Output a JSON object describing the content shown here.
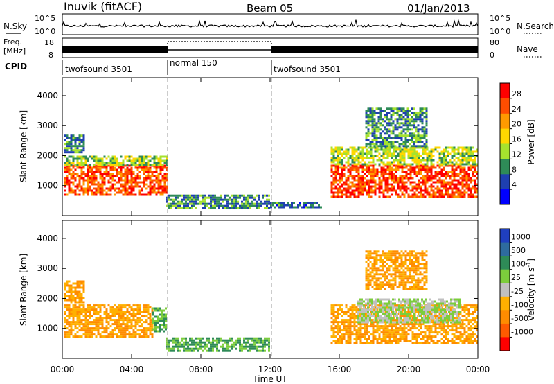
{
  "header": {
    "station": "Inuvik (fitACF)",
    "beam": "Beam 05",
    "date": "01/Jan/2013"
  },
  "strip_labels": {
    "nsky": "N.Sky",
    "nsky_ticks": [
      "10^5",
      "10^0"
    ],
    "nsearch": "N.Search",
    "nsearch_ticks": [
      "10^5",
      "10^0"
    ],
    "freq_line1": "Freq.",
    "freq_line2": "[MHz]",
    "freq_ticks": [
      "18",
      "8"
    ],
    "nave": "Nave",
    "nave_ticks": [
      "80",
      "0"
    ],
    "cpid": "CPID"
  },
  "cpid_segments": [
    {
      "label": "twofsound 3501",
      "start": 0,
      "end": 6
    },
    {
      "label": "normal 150",
      "start": 6,
      "end": 12
    },
    {
      "label": "twofsound 3501",
      "start": 12,
      "end": 24
    }
  ],
  "axes": {
    "xlabel": "Time UT",
    "xticks": [
      "00:00",
      "04:00",
      "08:00",
      "12:00",
      "16:00",
      "20:00",
      "00:00"
    ],
    "ylabel": "Slant Range [km]",
    "yticks": [
      "1000",
      "2000",
      "3000",
      "4000"
    ]
  },
  "colorbars": {
    "power": {
      "label": "Power [dB]",
      "ticks": [
        "28",
        "24",
        "20",
        "16",
        "12",
        "8",
        "4"
      ],
      "colors": [
        "#ff0000",
        "#ff4d00",
        "#ff9a00",
        "#ffd700",
        "#a6e22e",
        "#2e8b57",
        "#1e3fb0",
        "#0000ff"
      ]
    },
    "velocity": {
      "label": "Velocity [m s",
      "label_sup": "-1",
      "label_end": "]",
      "ticks": [
        "1000",
        "500",
        "100",
        "25",
        "-25",
        "-100",
        "-500",
        "-1000"
      ],
      "colors": [
        "#1f3fbf",
        "#2e6b9e",
        "#2e8b57",
        "#7ccd3c",
        "#c0c0c0",
        "#ffb000",
        "#ff8c00",
        "#ff5a00",
        "#ff0000"
      ]
    }
  },
  "chart_data": [
    {
      "type": "heatmap",
      "panel": "power",
      "x_range_hours": [
        0,
        24
      ],
      "ylim": [
        0,
        4600
      ],
      "units": "dB",
      "regions": [
        {
          "t0": 0.1,
          "t1": 6.0,
          "r0": 700,
          "r1": 1700,
          "value": 26
        },
        {
          "t0": 0.1,
          "t1": 6.0,
          "r0": 1700,
          "r1": 2000,
          "value": 14
        },
        {
          "t0": 0.1,
          "t1": 1.3,
          "r0": 2100,
          "r1": 2700,
          "value": 9
        },
        {
          "t0": 6.0,
          "t1": 12.0,
          "r0": 250,
          "r1": 700,
          "value": 10
        },
        {
          "t0": 12.0,
          "t1": 15.0,
          "r0": 250,
          "r1": 450,
          "value": 8
        },
        {
          "t0": 15.5,
          "t1": 24.0,
          "r0": 650,
          "r1": 1700,
          "value": 27
        },
        {
          "t0": 15.5,
          "t1": 24.0,
          "r0": 1700,
          "r1": 2300,
          "value": 15
        },
        {
          "t0": 17.5,
          "t1": 21.0,
          "r0": 2300,
          "r1": 3600,
          "value": 10
        }
      ]
    },
    {
      "type": "heatmap",
      "panel": "velocity",
      "x_range_hours": [
        0,
        24
      ],
      "ylim": [
        0,
        4600
      ],
      "units": "m s-1",
      "regions": [
        {
          "t0": 0.1,
          "t1": 5.2,
          "r0": 700,
          "r1": 1800,
          "value": -100
        },
        {
          "t0": 5.2,
          "t1": 6.0,
          "r0": 900,
          "r1": 1700,
          "value": 100
        },
        {
          "t0": 0.1,
          "t1": 1.2,
          "r0": 1900,
          "r1": 2600,
          "value": -100
        },
        {
          "t0": 6.0,
          "t1": 12.0,
          "r0": 250,
          "r1": 700,
          "value": 100
        },
        {
          "t0": 15.5,
          "t1": 24.0,
          "r0": 500,
          "r1": 1800,
          "value": -100
        },
        {
          "t0": 17.0,
          "t1": 23.0,
          "r0": 1200,
          "r1": 2000,
          "value": 25
        },
        {
          "t0": 17.5,
          "t1": 21.0,
          "r0": 2300,
          "r1": 3600,
          "value": -100
        }
      ]
    }
  ]
}
